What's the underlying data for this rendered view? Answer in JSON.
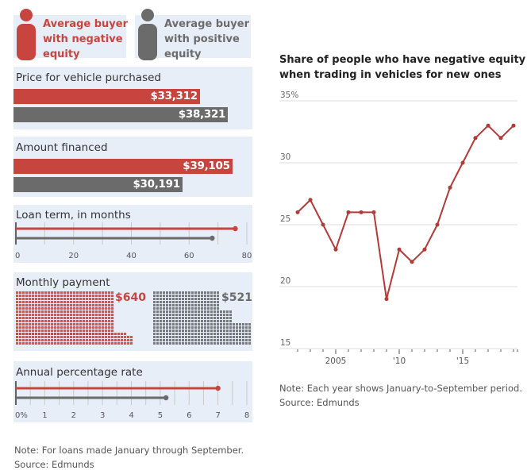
{
  "colors": {
    "negative": "#c8453f",
    "positive": "#6b6b6b",
    "panel_bg": "#e8eef8",
    "line": "#b33a36"
  },
  "legend": {
    "negative_label": [
      "Average buyer",
      "with negative",
      "equity"
    ],
    "positive_label": [
      "Average buyer",
      "with positive",
      "equity"
    ]
  },
  "left_charts": {
    "price": {
      "title": "Price for vehicle purchased",
      "negative": 33312,
      "positive": 38321,
      "negative_label": "$33,312",
      "positive_label": "$38,321"
    },
    "financed": {
      "title": "Amount financed",
      "negative": 39105,
      "positive": 30191,
      "negative_label": "$39,105",
      "positive_label": "$30,191"
    },
    "loan_term": {
      "title": "Loan term, in months",
      "negative": 76,
      "positive": 68,
      "ticks": [
        "0",
        "20",
        "40",
        "60",
        "80"
      ],
      "max": 80
    },
    "monthly": {
      "title": "Monthly payment",
      "negative": 640,
      "positive": 521,
      "negative_label": "$640",
      "positive_label": "$521"
    },
    "apr": {
      "title": "Annual percentage rate",
      "negative": 7.0,
      "positive": 5.2,
      "ticks": [
        "0%",
        "1",
        "2",
        "3",
        "4",
        "5",
        "6",
        "7",
        "8"
      ],
      "max": 8
    },
    "note": "Note: For loans made January through September.",
    "source": "Source: Edmunds"
  },
  "chart_data": {
    "type": "line",
    "title": "Share of people who have negative equity when trading in vehicles for new ones",
    "title_lines": [
      "Share of people who have negative equity",
      "when trading in vehicles for new ones"
    ],
    "x": [
      2002,
      2003,
      2004,
      2005,
      2006,
      2007,
      2008,
      2009,
      2010,
      2011,
      2012,
      2013,
      2014,
      2015,
      2016,
      2017,
      2018,
      2019
    ],
    "series": [
      {
        "name": "Share with negative equity (%)",
        "values": [
          26,
          27,
          25,
          23,
          26,
          26,
          26,
          19,
          23,
          22,
          23,
          25,
          28,
          30,
          32,
          33,
          32,
          33
        ]
      }
    ],
    "ylim": [
      15,
      35
    ],
    "yticks": [
      15,
      20,
      25,
      30,
      35
    ],
    "ytick_labels": [
      "15",
      "20",
      "25",
      "30",
      "35%"
    ],
    "xtick_labels": [
      {
        "year": 2005,
        "label": "2005"
      },
      {
        "year": 2010,
        "label": "'10"
      },
      {
        "year": 2015,
        "label": "'15"
      }
    ],
    "grid": true,
    "xlabel": "",
    "ylabel": "",
    "note": "Note: Each year shows January-to-September period.",
    "source": "Source: Edmunds"
  }
}
